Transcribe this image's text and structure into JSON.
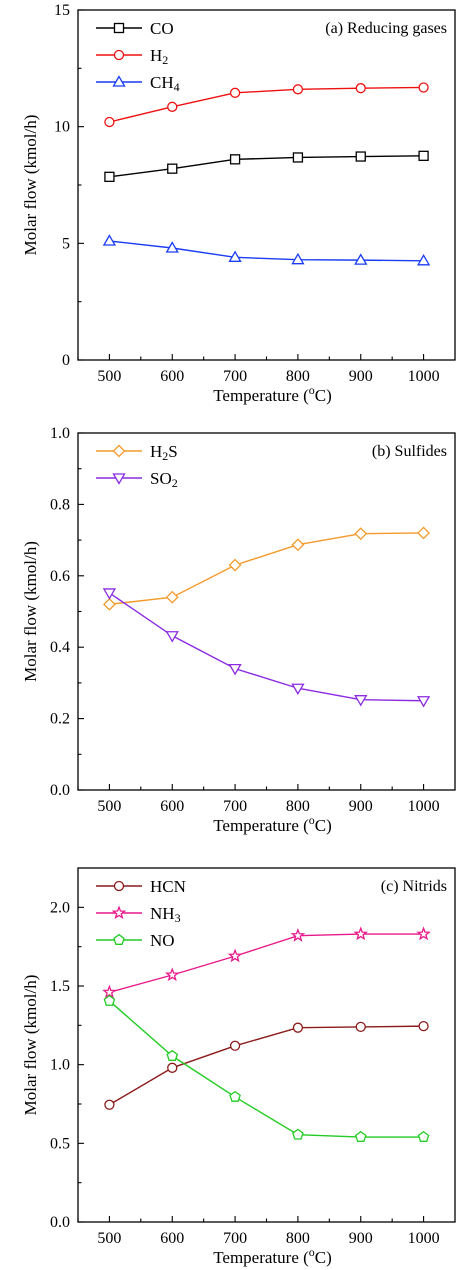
{
  "chart_data": [
    {
      "type": "line",
      "title": "(a) Reducing gases",
      "xlabel": "Temperature (",
      "xlabel_sup": "o",
      "xlabel_suffix": "C)",
      "ylabel": "Molar flow (kmol/h)",
      "x": [
        500,
        600,
        700,
        800,
        900,
        1000
      ],
      "xlim": [
        450,
        1050
      ],
      "ylim": [
        0,
        15
      ],
      "yticks": [
        0,
        5,
        10,
        15
      ],
      "yticks_minor": [
        2.5,
        7.5,
        12.5
      ],
      "legend_position": "top-left",
      "series": [
        {
          "name": "CO",
          "name_sub": "",
          "name_tail": "",
          "marker": "square",
          "color": "#000000",
          "values": [
            7.85,
            8.2,
            8.6,
            8.68,
            8.72,
            8.75
          ]
        },
        {
          "name": "H",
          "name_sub": "2",
          "name_tail": "",
          "marker": "circle",
          "color": "#ee1111",
          "values": [
            10.2,
            10.85,
            11.45,
            11.6,
            11.65,
            11.68
          ]
        },
        {
          "name": "CH",
          "name_sub": "4",
          "name_tail": "",
          "marker": "triangle-up",
          "color": "#1a3cf5",
          "values": [
            5.1,
            4.8,
            4.4,
            4.3,
            4.28,
            4.25
          ]
        }
      ]
    },
    {
      "type": "line",
      "title": "(b) Sulfides",
      "xlabel": "Temperature (",
      "xlabel_sup": "o",
      "xlabel_suffix": "C)",
      "ylabel": "Molar flow (kmol/h)",
      "x": [
        500,
        600,
        700,
        800,
        900,
        1000
      ],
      "xlim": [
        450,
        1050
      ],
      "ylim": [
        0,
        1.0
      ],
      "yticks": [
        0.0,
        0.2,
        0.4,
        0.6,
        0.8,
        1.0
      ],
      "yticks_minor": [
        0.1,
        0.3,
        0.5,
        0.7,
        0.9
      ],
      "legend_position": "top-left",
      "series": [
        {
          "name": "H",
          "name_sub": "2",
          "name_tail": "S",
          "marker": "diamond",
          "color": "#f39a2b",
          "values": [
            0.52,
            0.54,
            0.63,
            0.687,
            0.718,
            0.72
          ]
        },
        {
          "name": "SO",
          "name_sub": "2",
          "name_tail": "",
          "marker": "triangle-down",
          "color": "#8b2be2",
          "values": [
            0.552,
            0.432,
            0.34,
            0.285,
            0.253,
            0.25
          ]
        }
      ]
    },
    {
      "type": "line",
      "title": "(c) Nitrids",
      "xlabel": "Temperature (",
      "xlabel_sup": "o",
      "xlabel_suffix": "C)",
      "ylabel": "Molar flow (kmol/h)",
      "x": [
        500,
        600,
        700,
        800,
        900,
        1000
      ],
      "xlim": [
        450,
        1050
      ],
      "ylim": [
        0,
        2.25
      ],
      "yticks": [
        0.0,
        0.5,
        1.0,
        1.5,
        2.0
      ],
      "yticks_minor": [
        0.25,
        0.75,
        1.25,
        1.75
      ],
      "legend_position": "top-left",
      "series": [
        {
          "name": "HCN",
          "name_sub": "",
          "name_tail": "",
          "marker": "circle",
          "color": "#8b1a1a",
          "values": [
            0.745,
            0.98,
            1.12,
            1.235,
            1.24,
            1.245
          ]
        },
        {
          "name": "NH",
          "name_sub": "3",
          "name_tail": "",
          "marker": "star",
          "color": "#e8198b",
          "values": [
            1.46,
            1.57,
            1.69,
            1.82,
            1.83,
            1.83
          ]
        },
        {
          "name": "NO",
          "name_sub": "",
          "name_tail": "",
          "marker": "pentagon",
          "color": "#22cc22",
          "values": [
            1.405,
            1.055,
            0.795,
            0.555,
            0.54,
            0.54
          ]
        }
      ]
    }
  ]
}
